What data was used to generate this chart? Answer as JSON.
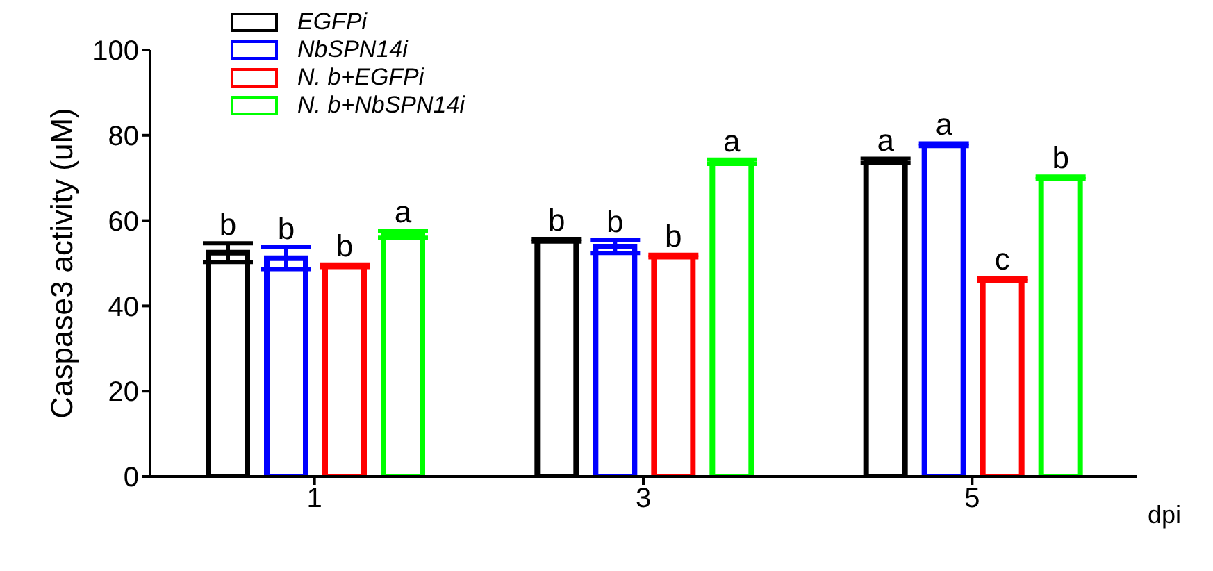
{
  "chart_data": {
    "type": "bar",
    "ylabel": "Caspase3 activity (uM)",
    "xlabel": "dpi",
    "categories": [
      "1",
      "3",
      "5"
    ],
    "ylim": [
      0,
      100
    ],
    "yticks": [
      0,
      20,
      40,
      60,
      80,
      100
    ],
    "grid": false,
    "legend": "top left",
    "series": [
      {
        "name": "EGFPi",
        "color": "#000000",
        "values": [
          52.5,
          55.4,
          74.0
        ],
        "errors": [
          2.2,
          0.3,
          0.5
        ],
        "value_labels": [
          "b",
          "b",
          "a"
        ]
      },
      {
        "name": "NbSPN14i",
        "color": "#0000ff",
        "values": [
          51.2,
          53.9,
          77.8
        ],
        "errors": [
          2.6,
          1.5,
          0.3
        ],
        "value_labels": [
          "b",
          "b",
          "a"
        ]
      },
      {
        "name": "N. b+EGFPi",
        "color": "#ff0000",
        "values": [
          49.4,
          51.7,
          46.2
        ],
        "errors": [
          0.3,
          0.3,
          0.3
        ],
        "value_labels": [
          "b",
          "b",
          "c"
        ]
      },
      {
        "name": "N. b+NbSPN14i",
        "color": "#00ff00",
        "values": [
          56.8,
          73.8,
          70.0
        ],
        "errors": [
          0.8,
          0.5,
          0.3
        ],
        "value_labels": [
          "a",
          "a",
          "b"
        ]
      }
    ]
  }
}
